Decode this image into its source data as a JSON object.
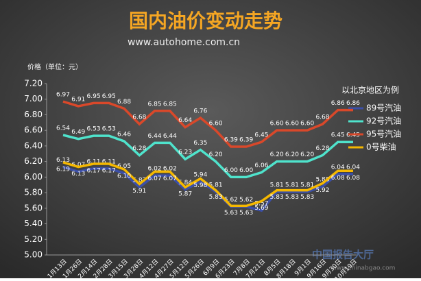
{
  "chart_data": {
    "type": "line",
    "title": "国内油价变动走势",
    "subtitle": "www.autohome.com.cn",
    "y_label": "价格（单位：元）",
    "legend_title": "以北京地区为例",
    "watermark": "中国报告大厅",
    "watermark_url": "www.chinabgao.com",
    "legend_position": "right",
    "categories": [
      "1月13日",
      "1月26日",
      "2月14日",
      "2月28日",
      "3月15日",
      "3月28日",
      "4月12日",
      "4月27日",
      "5月12日",
      "5月26日",
      "6月9日",
      "6月23日",
      "7月8日",
      "7月21日",
      "8月5日",
      "8月18日",
      "9月1日",
      "9月16日",
      "9月30日",
      "10月19日"
    ],
    "ylim": [
      5.0,
      7.2
    ],
    "yticks": [
      {
        "value": 5.0,
        "label": "5.00"
      },
      {
        "value": 5.2,
        "label": "5.20"
      },
      {
        "value": 5.4,
        "label": "5.40"
      },
      {
        "value": 5.6,
        "label": "5.60"
      },
      {
        "value": 5.8,
        "label": "5.80"
      },
      {
        "value": 6.0,
        "label": "6.00"
      },
      {
        "value": 6.2,
        "label": "6.20"
      },
      {
        "value": 6.4,
        "label": "6.40"
      },
      {
        "value": 6.6,
        "label": "6.60"
      },
      {
        "value": 6.8,
        "label": "6.80"
      },
      {
        "value": 7.0,
        "label": "7.00"
      },
      {
        "value": 7.2,
        "label": "7.20"
      }
    ],
    "series": [
      {
        "name": "89号汽油",
        "color": "#3b4fa8",
        "label_side": "above",
        "values": [
          6.13,
          6.07,
          6.11,
          6.11,
          6.05,
          5.87,
          6.02,
          6.02,
          5.84,
          5.94,
          5.81,
          5.62,
          5.62,
          5.57,
          5.81,
          5.81,
          5.81,
          5.88,
          6.04,
          6.04
        ],
        "value_labels": [
          "6.13",
          "6.07",
          "6.11",
          "6.11",
          "6.05",
          "5.87",
          "6.02",
          "6.02",
          "5.84",
          "5.94",
          "5.81",
          "5.62",
          "5.62",
          "5.57",
          "5.81",
          "5.81",
          "5.81",
          "5.88",
          "6.04",
          "6.04"
        ]
      },
      {
        "name": "92号汽油",
        "color": "#4fe3cc",
        "label_side": "above",
        "values": [
          6.54,
          6.49,
          6.53,
          6.53,
          6.46,
          6.28,
          6.44,
          6.44,
          6.23,
          6.35,
          6.2,
          6.0,
          6.0,
          6.06,
          6.2,
          6.2,
          6.2,
          6.28,
          6.45,
          6.45
        ],
        "value_labels": [
          "6.54",
          "6.49",
          "6.53",
          "6.53",
          "6.46",
          "6.28",
          "6.44",
          "6.44",
          "6.23",
          "6.35",
          "6.20",
          "6.00",
          "6.00",
          "6.06",
          "6.20",
          "6.20",
          "6.20",
          "6.28",
          "6.45",
          "6.45"
        ]
      },
      {
        "name": "95号汽油",
        "color": "#d9482a",
        "label_side": "above",
        "values": [
          6.97,
          6.91,
          6.95,
          6.95,
          6.88,
          6.68,
          6.85,
          6.85,
          6.64,
          6.76,
          6.6,
          6.39,
          6.39,
          6.45,
          6.6,
          6.6,
          6.6,
          6.68,
          6.86,
          6.86
        ],
        "value_labels": [
          "6.97",
          "6.91",
          "6.95",
          "6.95",
          "6.88",
          "6.68",
          "6.85",
          "6.85",
          "6.64",
          "6.76",
          "6.60",
          "6.39",
          "6.39",
          "6.45",
          "6.60",
          "6.60",
          "6.60",
          "6.68",
          "6.86",
          "6.86"
        ]
      },
      {
        "name": "0号柴油",
        "color": "#f5b800",
        "label_side": "below",
        "values": [
          6.19,
          6.13,
          6.17,
          6.17,
          6.1,
          5.91,
          6.07,
          6.07,
          5.87,
          5.98,
          5.83,
          5.63,
          5.63,
          5.69,
          5.83,
          5.83,
          5.83,
          5.92,
          6.08,
          6.08
        ],
        "value_labels": [
          "6.19",
          "6.13",
          "6.17",
          "6.17",
          "6.10",
          "5.91",
          "6.07",
          "6.07",
          "5.87",
          "5.98",
          "5.83",
          "5.63",
          "5.63",
          "5.69",
          "5.83",
          "5.83",
          "5.83",
          "5.92",
          "6.08",
          "6.08"
        ]
      }
    ]
  }
}
